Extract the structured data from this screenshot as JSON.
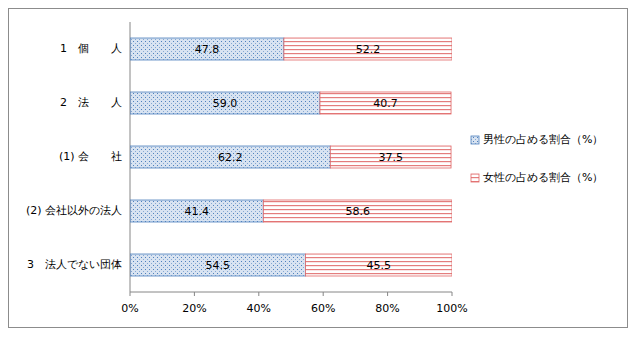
{
  "chart_data": {
    "type": "bar",
    "orientation": "horizontal",
    "stacked": true,
    "data_labels": true,
    "legend": "right",
    "grid": false,
    "categories": [
      "1　個　　人",
      "2　法　　人",
      "(1) 会　　社",
      "(2) 会社以外の法人",
      "3　法人でない団体"
    ],
    "series": [
      {
        "name": "男性の占める割合（%）",
        "color": "#4f81bd",
        "values": [
          47.8,
          59.0,
          62.2,
          41.4,
          54.5
        ],
        "value_labels": [
          "47.8",
          "59.0",
          "62.2",
          "41.4",
          "54.5"
        ]
      },
      {
        "name": "女性の占める割合（%）",
        "color": "#e06666",
        "values": [
          52.2,
          40.7,
          37.5,
          58.6,
          45.5
        ]
      }
    ],
    "xlim": [
      0,
      100
    ],
    "xticks": [
      {
        "value": 0,
        "label": "0%"
      },
      {
        "value": 20,
        "label": "20%"
      },
      {
        "value": 40,
        "label": "40%"
      },
      {
        "value": 60,
        "label": "60%"
      },
      {
        "value": 80,
        "label": "80%"
      },
      {
        "value": 100,
        "label": "100%"
      }
    ]
  }
}
